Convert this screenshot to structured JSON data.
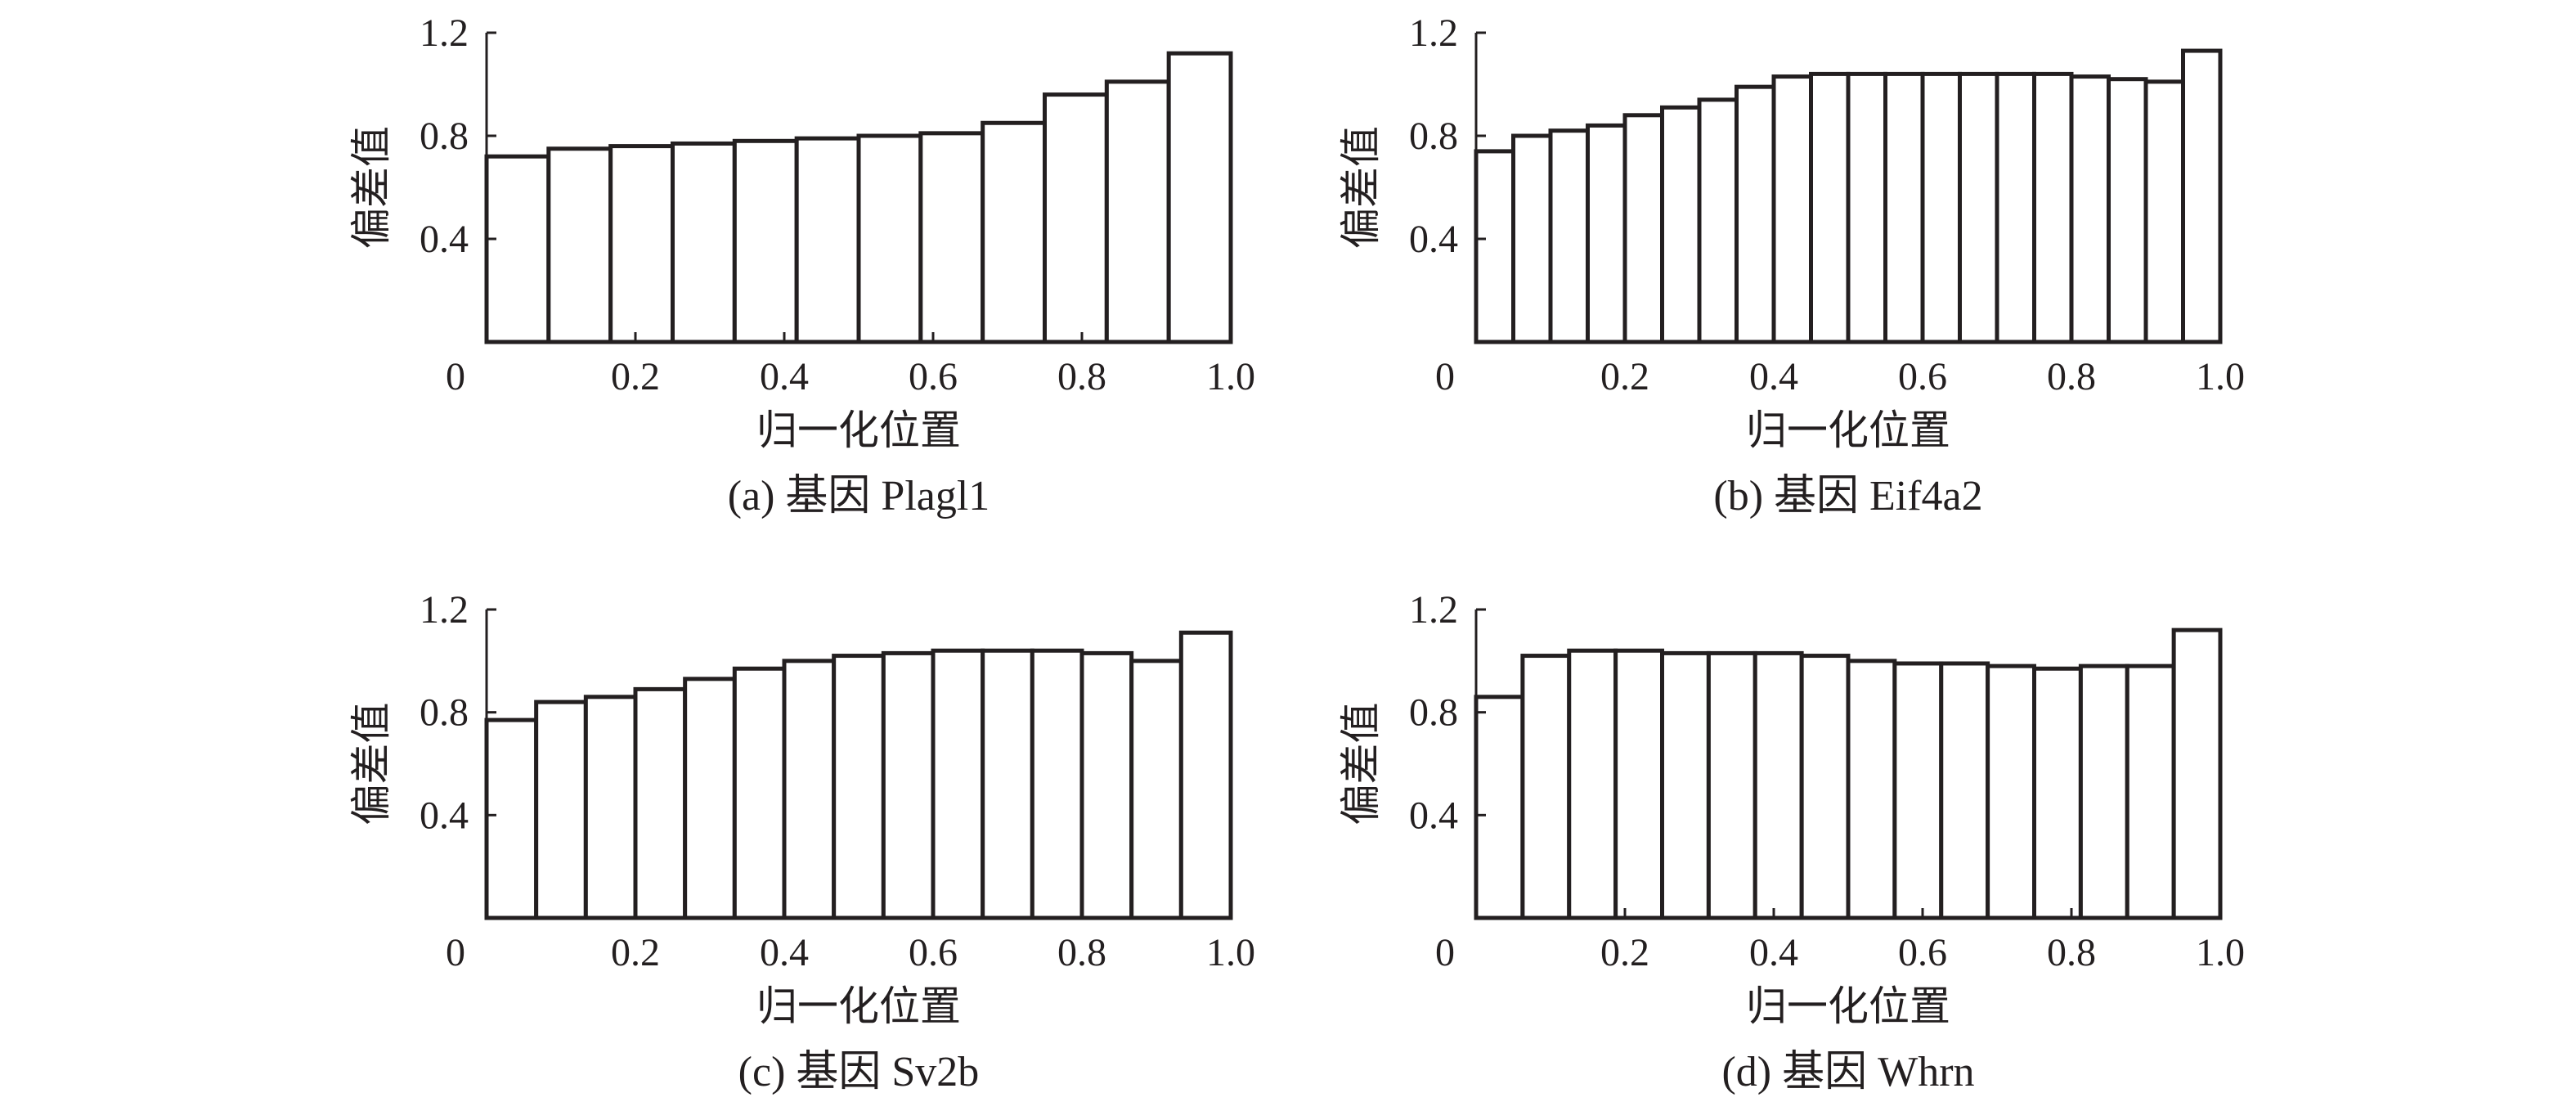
{
  "chart_data": [
    {
      "type": "bar",
      "panel": "a",
      "caption": "(a) 基因 Plagl1",
      "xlabel": "归一化位置",
      "ylabel": "偏差值",
      "xlim": [
        0,
        1.0
      ],
      "ylim": [
        0,
        1.2
      ],
      "xticks": [
        "0",
        "0.2",
        "0.4",
        "0.6",
        "0.8",
        "1.0"
      ],
      "yticks": [
        "0.4",
        "0.8",
        "1.2"
      ],
      "grid": false,
      "values": [
        0.72,
        0.75,
        0.76,
        0.77,
        0.78,
        0.79,
        0.8,
        0.81,
        0.85,
        0.96,
        1.01,
        1.12
      ]
    },
    {
      "type": "bar",
      "panel": "b",
      "caption": "(b) 基因 Eif4a2",
      "xlabel": "归一化位置",
      "ylabel": "偏差值",
      "xlim": [
        0,
        1.0
      ],
      "ylim": [
        0,
        1.2
      ],
      "xticks": [
        "0",
        "0.2",
        "0.4",
        "0.6",
        "0.8",
        "1.0"
      ],
      "yticks": [
        "0.4",
        "0.8",
        "1.2"
      ],
      "grid": false,
      "values": [
        0.74,
        0.8,
        0.82,
        0.84,
        0.88,
        0.91,
        0.94,
        0.99,
        1.03,
        1.04,
        1.04,
        1.04,
        1.04,
        1.04,
        1.04,
        1.04,
        1.03,
        1.02,
        1.01,
        1.13
      ]
    },
    {
      "type": "bar",
      "panel": "c",
      "caption": "(c) 基因 Sv2b",
      "xlabel": "归一化位置",
      "ylabel": "偏差值",
      "xlim": [
        0,
        1.0
      ],
      "ylim": [
        0,
        1.2
      ],
      "xticks": [
        "0",
        "0.2",
        "0.4",
        "0.6",
        "0.8",
        "1.0"
      ],
      "yticks": [
        "0.4",
        "0.8",
        "1.2"
      ],
      "grid": false,
      "values": [
        0.77,
        0.84,
        0.86,
        0.89,
        0.93,
        0.97,
        1.0,
        1.02,
        1.03,
        1.04,
        1.04,
        1.04,
        1.03,
        1.0,
        1.11
      ]
    },
    {
      "type": "bar",
      "panel": "d",
      "caption": "(d) 基因 Whrn",
      "xlabel": "归一化位置",
      "ylabel": "偏差值",
      "xlim": [
        0,
        1.0
      ],
      "ylim": [
        0,
        1.2
      ],
      "xticks": [
        "0",
        "0.2",
        "0.4",
        "0.6",
        "0.8",
        "1.0"
      ],
      "yticks": [
        "0.4",
        "0.8",
        "1.2"
      ],
      "grid": false,
      "values": [
        0.86,
        1.02,
        1.04,
        1.04,
        1.03,
        1.03,
        1.03,
        1.02,
        1.0,
        0.99,
        0.99,
        0.98,
        0.97,
        0.98,
        0.98,
        1.12
      ]
    }
  ]
}
